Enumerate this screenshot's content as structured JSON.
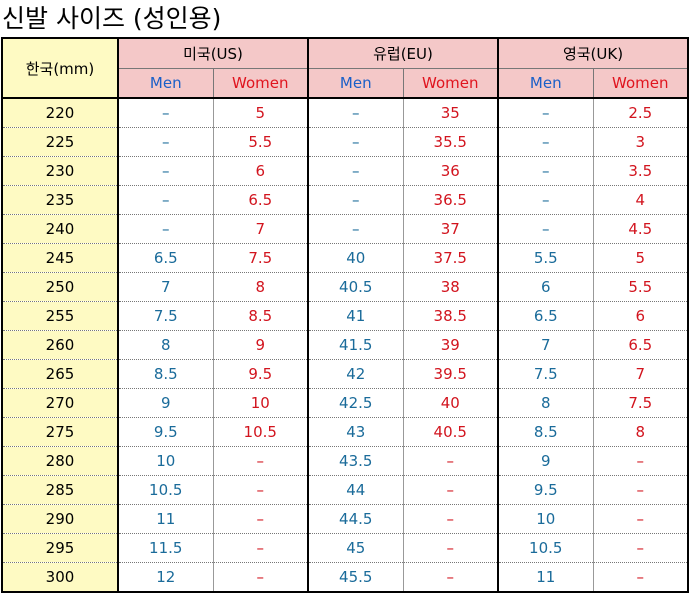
{
  "title": "신발 사이즈 (성인용)",
  "header": {
    "korea": "한국(mm)",
    "regions": [
      {
        "label": "미국(US)",
        "men": "Men",
        "women": "Women"
      },
      {
        "label": "유럽(EU)",
        "men": "Men",
        "women": "Women"
      },
      {
        "label": "영국(UK)",
        "men": "Men",
        "women": "Women"
      }
    ]
  },
  "rows": [
    [
      "220",
      "–",
      "5",
      "–",
      "35",
      "–",
      "2.5"
    ],
    [
      "225",
      "–",
      "5.5",
      "–",
      "35.5",
      "–",
      "3"
    ],
    [
      "230",
      "–",
      "6",
      "–",
      "36",
      "–",
      "3.5"
    ],
    [
      "235",
      "–",
      "6.5",
      "–",
      "36.5",
      "–",
      "4"
    ],
    [
      "240",
      "–",
      "7",
      "–",
      "37",
      "–",
      "4.5"
    ],
    [
      "245",
      "6.5",
      "7.5",
      "40",
      "37.5",
      "5.5",
      "5"
    ],
    [
      "250",
      "7",
      "8",
      "40.5",
      "38",
      "6",
      "5.5"
    ],
    [
      "255",
      "7.5",
      "8.5",
      "41",
      "38.5",
      "6.5",
      "6"
    ],
    [
      "260",
      "8",
      "9",
      "41.5",
      "39",
      "7",
      "6.5"
    ],
    [
      "265",
      "8.5",
      "9.5",
      "42",
      "39.5",
      "7.5",
      "7"
    ],
    [
      "270",
      "9",
      "10",
      "42.5",
      "40",
      "8",
      "7.5"
    ],
    [
      "275",
      "9.5",
      "10.5",
      "43",
      "40.5",
      "8.5",
      "8"
    ],
    [
      "280",
      "10",
      "–",
      "43.5",
      "–",
      "9",
      "–"
    ],
    [
      "285",
      "10.5",
      "–",
      "44",
      "–",
      "9.5",
      "–"
    ],
    [
      "290",
      "11",
      "–",
      "44.5",
      "–",
      "10",
      "–"
    ],
    [
      "295",
      "11.5",
      "–",
      "45",
      "–",
      "10.5",
      "–"
    ],
    [
      "300",
      "12",
      "–",
      "45.5",
      "–",
      "11",
      "–"
    ]
  ],
  "colors": {
    "korea_column": "#fefac3",
    "header_background": "#f4c8c8",
    "men_header": "#1a5fc8",
    "women_header": "#e0141e",
    "men_values": "#1a6b9a",
    "women_values": "#d2141e"
  }
}
